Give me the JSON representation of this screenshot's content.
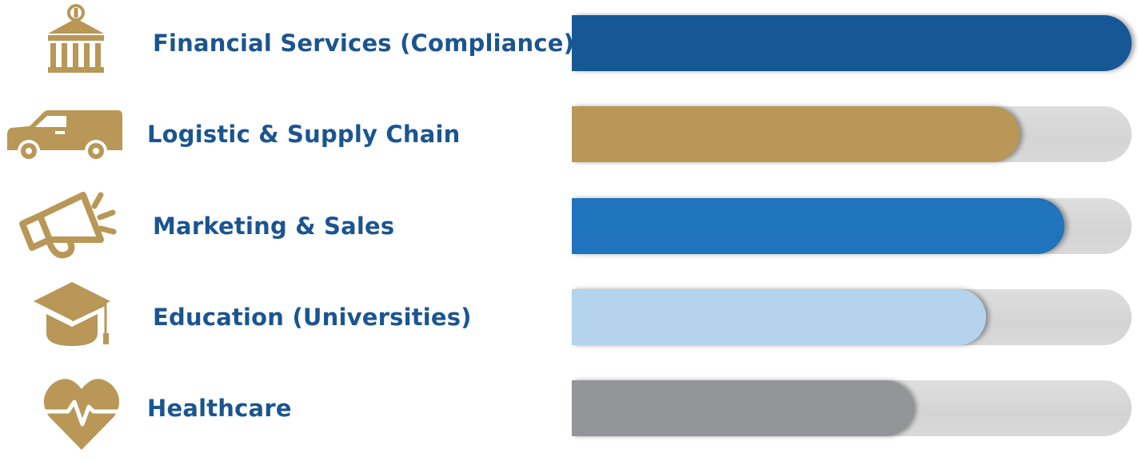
{
  "chart_data": {
    "type": "bar",
    "orientation": "horizontal",
    "categories": [
      "Financial Services (Compliance)",
      "Logistic & Supply Chain",
      "Marketing & Sales",
      "Education (Universities)",
      "Healthcare"
    ],
    "values": [
      100,
      80,
      88,
      74,
      61
    ],
    "xlim": [
      0,
      100
    ],
    "grid": false,
    "legend": "none"
  },
  "bars": [
    {
      "icon": "bank-icon",
      "color": "#165796"
    },
    {
      "icon": "van-icon",
      "color": "#b89757"
    },
    {
      "icon": "megaphone-icon",
      "color": "#1f74bd"
    },
    {
      "icon": "graduation-cap-icon",
      "color": "#b5d3ed"
    },
    {
      "icon": "heart-pulse-icon",
      "color": "#939598"
    }
  ],
  "colors": {
    "label_text": "#1b5590",
    "icon_gold": "#b89757",
    "track": "#d9d9d9"
  }
}
